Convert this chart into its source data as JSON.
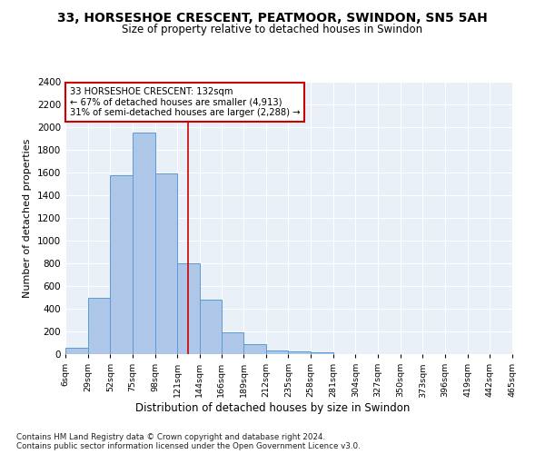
{
  "title": "33, HORSESHOE CRESCENT, PEATMOOR, SWINDON, SN5 5AH",
  "subtitle": "Size of property relative to detached houses in Swindon",
  "xlabel": "Distribution of detached houses by size in Swindon",
  "ylabel": "Number of detached properties",
  "bar_values": [
    60,
    500,
    1580,
    1950,
    1590,
    800,
    480,
    195,
    90,
    35,
    25,
    20
  ],
  "bin_edges_all": [
    6,
    29,
    52,
    75,
    98,
    121,
    144,
    166,
    189,
    212,
    235,
    258,
    281,
    304,
    327,
    350,
    373,
    396,
    419,
    442,
    465
  ],
  "bar_color": "#aec6e8",
  "bar_edge_color": "#5b9bd5",
  "annotation_text_line1": "33 HORSESHOE CRESCENT: 132sqm",
  "annotation_text_line2": "← 67% of detached houses are smaller (4,913)",
  "annotation_text_line3": "31% of semi-detached houses are larger (2,288) →",
  "annotation_box_color": "#ffffff",
  "annotation_box_edge": "#cc0000",
  "vline_x": 132,
  "vline_color": "#cc0000",
  "footnote1": "Contains HM Land Registry data © Crown copyright and database right 2024.",
  "footnote2": "Contains public sector information licensed under the Open Government Licence v3.0.",
  "background_color": "#eaf0f8",
  "ylim": [
    0,
    2400
  ],
  "yticks": [
    0,
    200,
    400,
    600,
    800,
    1000,
    1200,
    1400,
    1600,
    1800,
    2000,
    2200,
    2400
  ],
  "figsize": [
    6.0,
    5.0
  ],
  "dpi": 100
}
